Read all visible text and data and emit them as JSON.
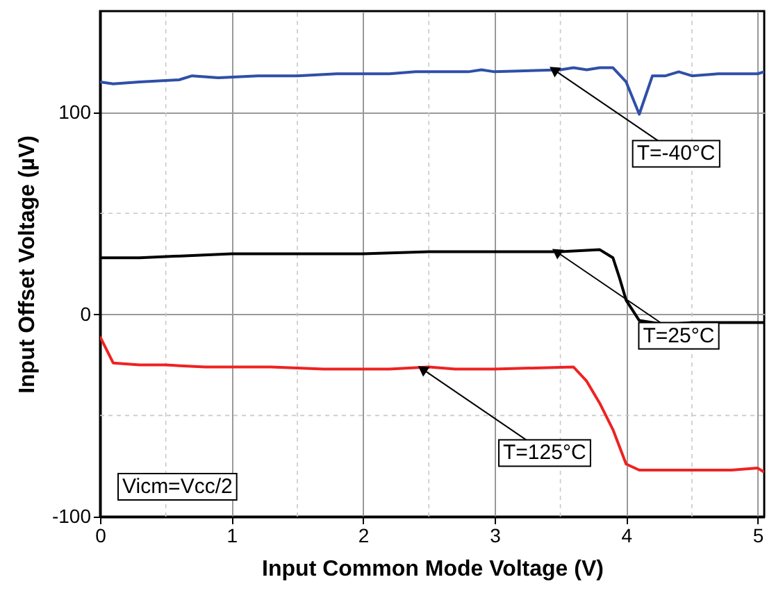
{
  "chart_data": {
    "type": "line",
    "xlabel": "Input Common Mode Voltage (V)",
    "ylabel": "Input Offset Voltage (µV)",
    "xlim": [
      0,
      5.05
    ],
    "ylim": [
      -100,
      150
    ],
    "xticks": [
      0,
      1,
      2,
      3,
      4,
      5
    ],
    "yticks": [
      -100,
      0,
      100
    ],
    "grid": true,
    "line_style": "solid",
    "marker": "none",
    "series": [
      {
        "color": "#2f4fa8",
        "x": [
          0,
          0.1,
          0.3,
          0.6,
          0.7,
          0.9,
          1.2,
          1.5,
          1.8,
          2.0,
          2.2,
          2.4,
          2.7,
          2.8,
          2.9,
          3.0,
          3.5,
          3.6,
          3.7,
          3.8,
          3.9,
          4.0,
          4.1,
          4.2,
          4.3,
          4.4,
          4.5,
          4.7,
          5.0,
          5.05
        ],
        "values": [
          115,
          114,
          115,
          116,
          118,
          117,
          118,
          118,
          119,
          119,
          119,
          120,
          120,
          120,
          121,
          120,
          121,
          122,
          121,
          122,
          122,
          115,
          99,
          118,
          118,
          120,
          118,
          119,
          119,
          120
        ]
      },
      {
        "color": "#000000",
        "x": [
          0,
          0.3,
          1.0,
          2.0,
          2.5,
          3.0,
          3.5,
          3.8,
          3.9,
          3.95,
          4.0,
          4.1,
          4.2,
          4.3,
          4.5,
          5.0,
          5.05
        ],
        "values": [
          28,
          28,
          30,
          30,
          31,
          31,
          31,
          32,
          28,
          18,
          7,
          -3,
          -4,
          -5,
          -4,
          -4,
          -4
        ]
      },
      {
        "color": "#ee2222",
        "x": [
          0,
          0.1,
          0.3,
          0.5,
          0.8,
          1.3,
          1.7,
          2.2,
          2.5,
          2.7,
          3.0,
          3.6,
          3.7,
          3.8,
          3.9,
          4.0,
          4.1,
          4.5,
          4.8,
          5.0,
          5.05
        ],
        "values": [
          -11,
          -24,
          -25,
          -25,
          -26,
          -26,
          -27,
          -27,
          -26,
          -27,
          -27,
          -26,
          -33,
          -44,
          -57,
          -74,
          -77,
          -77,
          -77,
          -76,
          -78
        ]
      }
    ],
    "annotations": [
      {
        "text": "T=-40°C",
        "x": 3.45,
        "y": 121
      },
      {
        "text": "T=25°C",
        "x": 3.47,
        "y": 31
      },
      {
        "text": "T=125°C",
        "x": 2.45,
        "y": -27
      },
      "Vicm=Vcc/2"
    ]
  }
}
